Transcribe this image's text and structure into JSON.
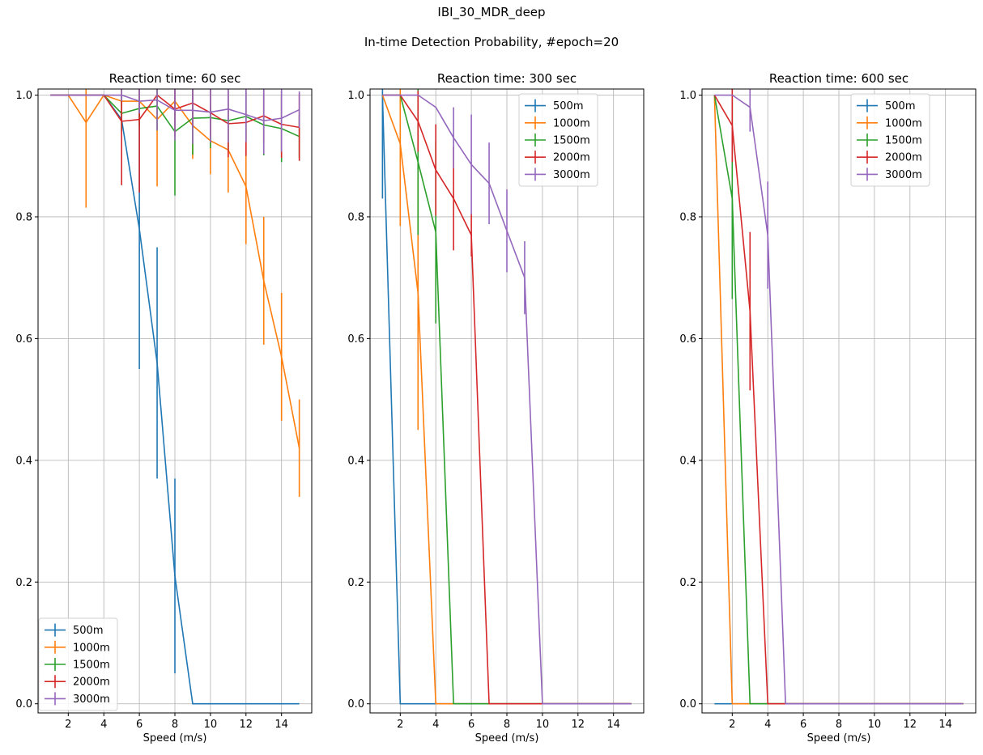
{
  "suptitle_line1": "IBI_30_MDR_deep",
  "suptitle_line2": "In-time Detection Probability, #epoch=20",
  "colors": {
    "500m": "#1f77b4",
    "1000m": "#ff7f0e",
    "1500m": "#2ca02c",
    "2000m": "#d62728",
    "3000m": "#9467bd"
  },
  "chart_data": [
    {
      "type": "line",
      "title": "Reaction time: 60 sec",
      "xlabel": "Speed (m/s)",
      "ylabel": "",
      "xlim": [
        0.3,
        15.7
      ],
      "ylim": [
        -0.015,
        1.01
      ],
      "xticks": [
        2,
        4,
        6,
        8,
        10,
        12,
        14
      ],
      "yticks": [
        0.0,
        0.2,
        0.4,
        0.6,
        0.8,
        1.0
      ],
      "grid": true,
      "legend_position": "lower-left",
      "x": [
        1,
        2,
        3,
        4,
        5,
        6,
        7,
        8,
        9,
        10,
        11,
        12,
        13,
        14,
        15
      ],
      "series": [
        {
          "name": "500m",
          "values": [
            1.0,
            1.0,
            1.0,
            1.0,
            0.96,
            0.78,
            0.56,
            0.21,
            0.0,
            0.0,
            0.0,
            0.0,
            0.0,
            0.0,
            0.0
          ],
          "errors": [
            0,
            0,
            0,
            0,
            0.01,
            0.23,
            0.19,
            0.16,
            0,
            0,
            0,
            0,
            0,
            0,
            0
          ]
        },
        {
          "name": "1000m",
          "values": [
            1.0,
            1.0,
            0.955,
            1.0,
            0.99,
            0.99,
            0.96,
            0.99,
            0.95,
            0.925,
            0.91,
            0.85,
            0.695,
            0.57,
            0.42
          ],
          "errors": [
            0,
            0,
            0.14,
            0,
            0.03,
            0.03,
            0.11,
            0.03,
            0.055,
            0.055,
            0.07,
            0.095,
            0.105,
            0.105,
            0.08
          ]
        },
        {
          "name": "1500m",
          "values": [
            1.0,
            1.0,
            1.0,
            1.0,
            0.97,
            0.978,
            0.982,
            0.94,
            0.962,
            0.963,
            0.958,
            0.965,
            0.951,
            0.945,
            0.932
          ],
          "errors": [
            0,
            0,
            0,
            0,
            0.03,
            0.03,
            0.04,
            0.105,
            0.06,
            0.05,
            0.05,
            0.04,
            0.05,
            0.055,
            0.035
          ]
        },
        {
          "name": "2000m",
          "values": [
            1.0,
            1.0,
            1.0,
            1.0,
            0.957,
            0.96,
            1.0,
            0.977,
            0.987,
            0.971,
            0.953,
            0.955,
            0.966,
            0.952,
            0.947
          ],
          "errors": [
            0,
            0,
            0,
            0,
            0.105,
            0.12,
            0,
            0.045,
            0.04,
            0.04,
            0.055,
            0.055,
            0.045,
            0.055,
            0.055
          ]
        },
        {
          "name": "3000m",
          "values": [
            1.0,
            1.0,
            1.0,
            1.0,
            1.0,
            0.99,
            0.992,
            0.975,
            0.975,
            0.972,
            0.977,
            0.968,
            0.958,
            0.962,
            0.976
          ],
          "errors": [
            0,
            0,
            0,
            0,
            0.01,
            0.02,
            0.05,
            0.05,
            0.055,
            0.05,
            0.055,
            0.045,
            0.055,
            0.055,
            0.03
          ]
        }
      ]
    },
    {
      "type": "line",
      "title": "Reaction time: 300 sec",
      "xlabel": "Speed (m/s)",
      "ylabel": "",
      "xlim": [
        0.3,
        15.7
      ],
      "ylim": [
        -0.015,
        1.01
      ],
      "xticks": [
        2,
        4,
        6,
        8,
        10,
        12,
        14
      ],
      "yticks": [
        0.0,
        0.2,
        0.4,
        0.6,
        0.8,
        1.0
      ],
      "grid": true,
      "legend_position": "top-right",
      "x": [
        1,
        2,
        3,
        4,
        5,
        6,
        7,
        8,
        9,
        10,
        11,
        12,
        13,
        14,
        15
      ],
      "series": [
        {
          "name": "500m",
          "values": [
            1.0,
            0.0,
            0.0,
            0.0,
            0.0,
            0.0,
            0.0,
            0.0,
            0.0,
            0.0,
            0.0,
            0.0,
            0.0,
            0.0,
            0.0
          ],
          "errors": [
            0.17,
            0,
            0,
            0,
            0,
            0,
            0,
            0,
            0,
            0,
            0,
            0,
            0,
            0,
            0
          ]
        },
        {
          "name": "1000m",
          "values": [
            1.0,
            0.92,
            0.675,
            0.0,
            0.0,
            0.0,
            0.0,
            0.0,
            0.0,
            0.0,
            0.0,
            0.0,
            0.0,
            0.0,
            0.0
          ],
          "errors": [
            0,
            0.135,
            0.225,
            0,
            0,
            0,
            0,
            0,
            0,
            0,
            0,
            0,
            0,
            0,
            0
          ]
        },
        {
          "name": "1500m",
          "values": [
            1.0,
            1.0,
            0.89,
            0.775,
            0.0,
            0.0,
            0.0,
            0.0,
            0.0,
            0.0,
            0.0,
            0.0,
            0.0,
            0.0,
            0.0
          ],
          "errors": [
            0,
            0,
            0.12,
            0.15,
            0,
            0,
            0,
            0,
            0,
            0,
            0,
            0,
            0,
            0,
            0
          ]
        },
        {
          "name": "2000m",
          "values": [
            1.0,
            1.0,
            0.957,
            0.877,
            0.83,
            0.77,
            0.0,
            0.0,
            0.0,
            0.0,
            0.0,
            0.0,
            0.0,
            0.0,
            0.0
          ],
          "errors": [
            0,
            0,
            0.05,
            0.075,
            0.085,
            0.035,
            0,
            0,
            0,
            0,
            0,
            0,
            0,
            0,
            0
          ]
        },
        {
          "name": "3000m",
          "values": [
            1.0,
            1.0,
            1.0,
            0.98,
            0.93,
            0.886,
            0.855,
            0.777,
            0.7,
            0.0,
            0.0,
            0.0,
            0.0,
            0.0,
            0.0
          ],
          "errors": [
            0,
            0,
            0,
            0,
            0.05,
            0.082,
            0.067,
            0.068,
            0.06,
            0,
            0,
            0,
            0,
            0,
            0
          ]
        }
      ]
    },
    {
      "type": "line",
      "title": "Reaction time: 600 sec",
      "xlabel": "Speed (m/s)",
      "ylabel": "",
      "xlim": [
        0.3,
        15.7
      ],
      "ylim": [
        -0.015,
        1.01
      ],
      "xticks": [
        2,
        4,
        6,
        8,
        10,
        12,
        14
      ],
      "yticks": [
        0.0,
        0.2,
        0.4,
        0.6,
        0.8,
        1.0
      ],
      "grid": true,
      "legend_position": "top-right",
      "x": [
        1,
        2,
        3,
        4,
        5,
        6,
        7,
        8,
        9,
        10,
        11,
        12,
        13,
        14,
        15
      ],
      "series": [
        {
          "name": "500m",
          "values": [
            0.0,
            0.0,
            0.0,
            0.0,
            0.0,
            0.0,
            0.0,
            0.0,
            0.0,
            0.0,
            0.0,
            0.0,
            0.0,
            0.0,
            0.0
          ],
          "errors": [
            0,
            0,
            0,
            0,
            0,
            0,
            0,
            0,
            0,
            0,
            0,
            0,
            0,
            0,
            0
          ]
        },
        {
          "name": "1000m",
          "values": [
            1.0,
            0.0,
            0.0,
            0.0,
            0.0,
            0.0,
            0.0,
            0.0,
            0.0,
            0.0,
            0.0,
            0.0,
            0.0,
            0.0,
            0.0
          ],
          "errors": [
            0,
            0,
            0,
            0,
            0,
            0,
            0,
            0,
            0,
            0,
            0,
            0,
            0,
            0,
            0
          ]
        },
        {
          "name": "1500m",
          "values": [
            1.0,
            0.83,
            0.0,
            0.0,
            0.0,
            0.0,
            0.0,
            0.0,
            0.0,
            0.0,
            0.0,
            0.0,
            0.0,
            0.0,
            0.0
          ],
          "errors": [
            0,
            0.165,
            0,
            0,
            0,
            0,
            0,
            0,
            0,
            0,
            0,
            0,
            0,
            0,
            0
          ]
        },
        {
          "name": "2000m",
          "values": [
            1.0,
            0.95,
            0.645,
            0.0,
            0.0,
            0.0,
            0.0,
            0.0,
            0.0,
            0.0,
            0.0,
            0.0,
            0.0,
            0.0,
            0.0
          ],
          "errors": [
            0,
            0.06,
            0.13,
            0,
            0,
            0,
            0,
            0,
            0,
            0,
            0,
            0,
            0,
            0,
            0
          ]
        },
        {
          "name": "3000m",
          "values": [
            1.0,
            1.0,
            0.98,
            0.77,
            0.0,
            0.0,
            0.0,
            0.0,
            0.0,
            0.0,
            0.0,
            0.0,
            0.0,
            0.0,
            0.0
          ],
          "errors": [
            0,
            0,
            0.04,
            0.088,
            0,
            0,
            0,
            0,
            0,
            0,
            0,
            0,
            0,
            0,
            0
          ]
        }
      ]
    }
  ]
}
